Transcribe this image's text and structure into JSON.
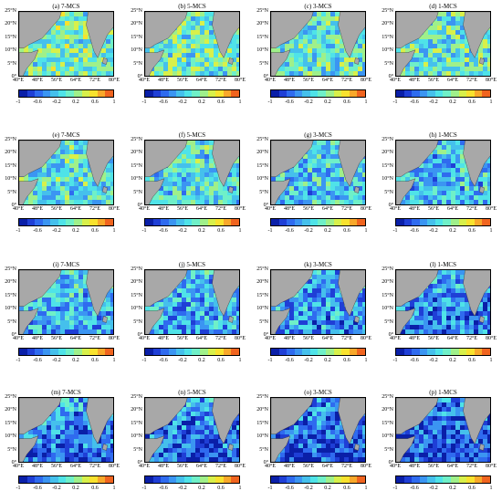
{
  "panels": [
    {
      "title": "(a) 7-MCS",
      "tone": 0.55
    },
    {
      "title": "(b) 5-MCS",
      "tone": 0.52
    },
    {
      "title": "(c) 3-MCS",
      "tone": 0.48
    },
    {
      "title": "(d) 1-MCS",
      "tone": 0.5
    },
    {
      "title": "(e) 7-MCS",
      "tone": 0.5
    },
    {
      "title": "(f) 5-MCS",
      "tone": 0.47
    },
    {
      "title": "(g) 3-MCS",
      "tone": 0.42
    },
    {
      "title": "(h) 1-MCS",
      "tone": 0.4
    },
    {
      "title": "(i) 7-MCS",
      "tone": 0.42
    },
    {
      "title": "(j) 5-MCS",
      "tone": 0.4
    },
    {
      "title": "(k) 3-MCS",
      "tone": 0.36
    },
    {
      "title": "(l) 1-MCS",
      "tone": 0.32
    },
    {
      "title": "(m) 7-MCS",
      "tone": 0.33
    },
    {
      "title": "(n) 5-MCS",
      "tone": 0.3
    },
    {
      "title": "(o) 3-MCS",
      "tone": 0.28
    },
    {
      "title": "(p) 1-MCS",
      "tone": 0.25
    }
  ],
  "lat_labels": [
    "25°N",
    "20°N",
    "15°N",
    "10°N",
    "5°N",
    "0°"
  ],
  "lon_labels": [
    "40°E",
    "48°E",
    "56°E",
    "64°E",
    "72°E",
    "80°E"
  ],
  "colorbar": {
    "ticks": [
      "-1",
      "-0.6",
      "-0.2",
      "0.2",
      "0.6",
      "1"
    ],
    "colors": [
      "#0a1fa8",
      "#1f3fd6",
      "#2f6bef",
      "#3b95f2",
      "#45c0ec",
      "#4fe3e8",
      "#6ff0c8",
      "#9ff08a",
      "#d8f04a",
      "#f8e22e",
      "#f8a82a",
      "#f0641f"
    ]
  },
  "land_color": "#a8a8a8"
}
